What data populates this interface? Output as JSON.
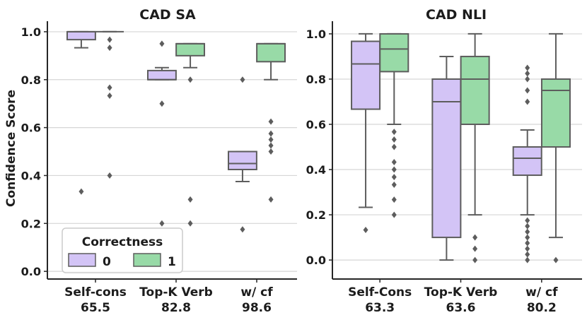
{
  "chart_data": [
    {
      "type": "box",
      "title": "CAD SA",
      "ylabel": "Confidence Score",
      "categories": [
        "Self-cons",
        "Top-K Verb",
        "w/ cf"
      ],
      "category_sublabels": [
        "65.5",
        "82.8",
        "98.6"
      ],
      "yticks": [
        0.0,
        0.2,
        0.4,
        0.6,
        0.8,
        1.0
      ],
      "ytick_labels": [
        "0.0",
        "0.2",
        "0.4",
        "0.6",
        "0.8",
        "1.0"
      ],
      "ylim": [
        -0.032,
        1.044
      ],
      "grid": true,
      "legend": {
        "title": "Correctness",
        "placement": "lower-left"
      },
      "series": [
        {
          "name": "0",
          "color": "#d3c4f6",
          "boxes": [
            {
              "q1": 0.967,
              "median": 1.0,
              "q3": 1.0,
              "whislo": 0.933,
              "whishi": 1.0,
              "fliers": [
                0.333
              ]
            },
            {
              "q1": 0.8,
              "median": 0.8,
              "q3": 0.838,
              "whislo": 0.8,
              "whishi": 0.85,
              "fliers": [
                0.95,
                0.7,
                0.2
              ]
            },
            {
              "q1": 0.425,
              "median": 0.45,
              "q3": 0.5,
              "whislo": 0.375,
              "whishi": 0.5,
              "fliers": [
                0.8,
                0.175
              ]
            }
          ]
        },
        {
          "name": "1",
          "color": "#98daa7",
          "boxes": [
            {
              "q1": 1.0,
              "median": 1.0,
              "q3": 1.0,
              "whislo": 1.0,
              "whishi": 1.0,
              "fliers": [
                0.967,
                0.933,
                0.767,
                0.733,
                0.4
              ]
            },
            {
              "q1": 0.9,
              "median": 0.95,
              "q3": 0.95,
              "whislo": 0.85,
              "whishi": 0.95,
              "fliers": [
                0.8,
                0.3,
                0.2
              ]
            },
            {
              "q1": 0.875,
              "median": 0.95,
              "q3": 0.95,
              "whislo": 0.8,
              "whishi": 0.95,
              "fliers": [
                0.625,
                0.575,
                0.55,
                0.525,
                0.5,
                0.3
              ]
            }
          ]
        }
      ]
    },
    {
      "type": "box",
      "title": "CAD NLI",
      "categories": [
        "Self-Cons",
        "Top-K Verb",
        "w/ cf"
      ],
      "category_sublabels": [
        "63.3",
        "63.6",
        "80.2"
      ],
      "yticks": [
        0.0,
        0.2,
        0.4,
        0.6,
        0.8,
        1.0
      ],
      "ytick_labels": [
        "0.0",
        "0.2",
        "0.4",
        "0.6",
        "0.8",
        "1.0"
      ],
      "ylim": [
        -0.084,
        1.056
      ],
      "grid": true,
      "series": [
        {
          "color": "#d3c4f6",
          "boxes": [
            {
              "q1": 0.667,
              "median": 0.867,
              "q3": 0.967,
              "whislo": 0.233,
              "whishi": 1.0,
              "fliers": [
                0.133
              ]
            },
            {
              "q1": 0.1,
              "median": 0.7,
              "q3": 0.8,
              "whislo": 0.0,
              "whishi": 0.9,
              "fliers": []
            },
            {
              "q1": 0.375,
              "median": 0.45,
              "q3": 0.5,
              "whislo": 0.2,
              "whishi": 0.575,
              "fliers": [
                0.85,
                0.825,
                0.8,
                0.75,
                0.7,
                0.175,
                0.15,
                0.125,
                0.1,
                0.075,
                0.05,
                0.025,
                0.0
              ]
            }
          ]
        },
        {
          "color": "#98daa7",
          "boxes": [
            {
              "q1": 0.833,
              "median": 0.933,
              "q3": 1.0,
              "whislo": 0.6,
              "whishi": 1.0,
              "fliers": [
                0.567,
                0.533,
                0.5,
                0.433,
                0.4,
                0.367,
                0.333,
                0.267,
                0.2
              ]
            },
            {
              "q1": 0.6,
              "median": 0.8,
              "q3": 0.9,
              "whislo": 0.2,
              "whishi": 1.0,
              "fliers": [
                0.1,
                0.05,
                0.0
              ]
            },
            {
              "q1": 0.5,
              "median": 0.75,
              "q3": 0.8,
              "whislo": 0.1,
              "whishi": 1.0,
              "fliers": [
                0.0
              ]
            }
          ]
        }
      ]
    }
  ],
  "colors": {
    "box_edge": "#5d5d5d",
    "grid": "#d6d6d6",
    "axis": "#262626",
    "legend_border": "#cccccc"
  }
}
